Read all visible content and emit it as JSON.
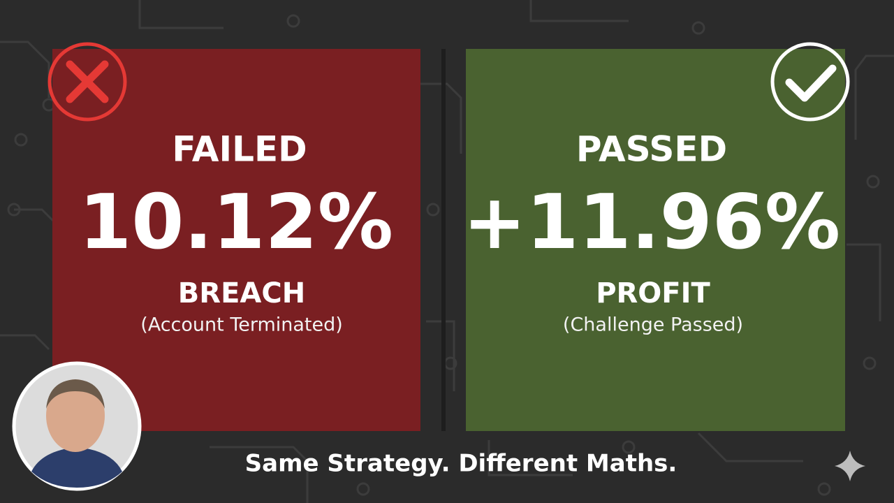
{
  "left_panel": {
    "status": "FAILED",
    "percentage": "10.12%",
    "label": "BREACH",
    "note": "(Account Terminated)"
  },
  "right_panel": {
    "status": "PASSED",
    "percentage": "+11.96%",
    "label": "PROFIT",
    "note": "(Challenge Passed)"
  },
  "caption": "Same Strategy. Different Maths."
}
